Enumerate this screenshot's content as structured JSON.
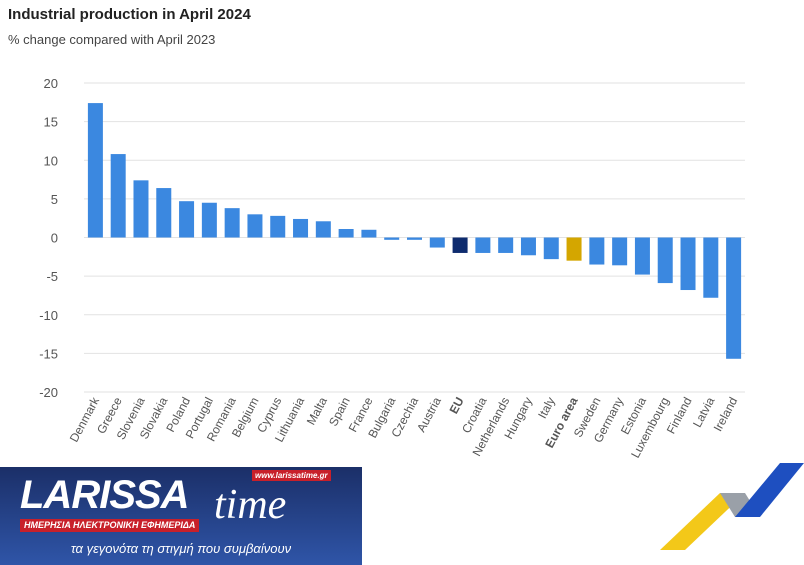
{
  "chart_data": {
    "type": "bar",
    "title": "Industrial production in April 2024",
    "subtitle": "% change compared with April 2023",
    "xlabel": "",
    "ylabel": "",
    "ylim": [
      -20,
      20
    ],
    "yticks": [
      20,
      15,
      10,
      5,
      0,
      -5,
      -10,
      -15,
      -20
    ],
    "grid": true,
    "categories": [
      "Denmark",
      "Greece",
      "Slovenia",
      "Slovakia",
      "Poland",
      "Portugal",
      "Romania",
      "Belgium",
      "Cyprus",
      "Lithuania",
      "Malta",
      "Spain",
      "France",
      "Bulgaria",
      "Czechia",
      "Austria",
      "EU",
      "Croatia",
      "Netherlands",
      "Hungary",
      "Italy",
      "Euro area",
      "Sweden",
      "Germany",
      "Estonia",
      "Luxembourg",
      "Finland",
      "Latvia",
      "Ireland"
    ],
    "values": [
      17.4,
      10.8,
      7.4,
      6.4,
      4.7,
      4.5,
      3.8,
      3.0,
      2.8,
      2.4,
      2.1,
      1.1,
      1.0,
      -0.3,
      -0.3,
      -1.3,
      -2.0,
      -2.0,
      -2.0,
      -2.3,
      -2.8,
      -3.0,
      -3.5,
      -3.6,
      -4.8,
      -5.9,
      -6.8,
      -7.8,
      -15.7
    ],
    "highlight": {
      "EU": "#0e2b6e",
      "Euro area": "#d4a600"
    },
    "bar_color": "#3b88e0"
  },
  "logo": {
    "brand": "LARISSA",
    "brand2": "time",
    "url": "www.larissatime.gr",
    "tagline": "ΗΜΕΡΗΣΙΑ ΗΛΕΚΤΡΟΝΙΚΗ ΕΦΗΜΕΡΙΔΑ",
    "slogan": "τα γεγονότα τη στιγμή που συμβαίνουν"
  }
}
